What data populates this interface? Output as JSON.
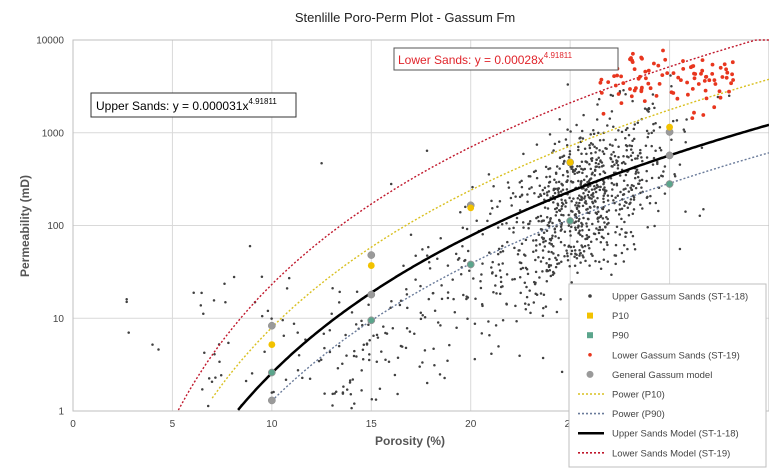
{
  "chart_data": {
    "type": "scatter",
    "title": "Stenlille Poro-Perm Plot - Gassum Fm",
    "xlabel": "Porosity (%)",
    "ylabel": "Permeability (mD)",
    "xlim": [
      0,
      35
    ],
    "ylim": [
      1,
      10000
    ],
    "y_scale": "log",
    "x_ticks": [
      "0",
      "5",
      "10",
      "15",
      "20",
      "25",
      "30",
      "35"
    ],
    "y_ticks": [
      "1",
      "10",
      "100",
      "1000",
      "10000"
    ],
    "grid": true,
    "legend_position": "bottom-right",
    "annotations": [
      {
        "label": "Upper Sands: y = 0.000031x",
        "exponent": "4.91811",
        "color": "#000000"
      },
      {
        "label": "Lower Sands: y = 0.00028x",
        "exponent": "4.91811",
        "color": "#e0242b"
      }
    ],
    "legend": [
      {
        "label": "Upper Gassum Sands (ST-1-18)",
        "kind": "dot",
        "color": "#404040"
      },
      {
        "label": "P10",
        "kind": "square",
        "color": "#f2c200"
      },
      {
        "label": "P90",
        "kind": "square",
        "color": "#5ba58c"
      },
      {
        "label": "Lower Gassum Sands (ST-19)",
        "kind": "dot",
        "color": "#e8361e"
      },
      {
        "label": "General Gassum model",
        "kind": "circle",
        "color": "#9a9a9a"
      },
      {
        "label": "Power (P10)",
        "kind": "dotted",
        "color": "#d9c020"
      },
      {
        "label": "Power (P90)",
        "kind": "dotted",
        "color": "#6a7b9a"
      },
      {
        "label": "Upper Sands Model (ST-1-18)",
        "kind": "solid",
        "color": "#000000"
      },
      {
        "label": "Lower Sands Model (ST-19)",
        "kind": "dotted",
        "color": "#c0182c"
      }
    ],
    "series": [
      {
        "name": "Upper Sands Model (ST-1-18)",
        "type": "power_curve",
        "a": 3.1e-05,
        "b": 4.91811,
        "x_range": [
          8.3,
          35
        ],
        "color": "#000000"
      },
      {
        "name": "Lower Sands Model (ST-19)",
        "type": "power_curve",
        "a": 0.00028,
        "b": 4.91811,
        "x_range": [
          5.2,
          35
        ],
        "color": "#c0182c"
      },
      {
        "name": "Power (P10)",
        "type": "power_curve",
        "a": 9.6e-05,
        "b": 4.91811,
        "x_range": [
          7.0,
          35
        ],
        "color": "#d9c020"
      },
      {
        "name": "Power (P90)",
        "type": "power_curve",
        "a": 1.55e-05,
        "b": 4.91811,
        "x_range": [
          10.0,
          35
        ],
        "color": "#6a7b9a"
      },
      {
        "name": "General Gassum model",
        "type": "points",
        "color": "#9a9a9a",
        "points": [
          [
            10,
            1.3
          ],
          [
            10,
            2.6
          ],
          [
            10,
            8.3
          ],
          [
            15,
            9.5
          ],
          [
            15,
            18
          ],
          [
            15,
            48
          ],
          [
            20,
            38
          ],
          [
            20,
            165
          ],
          [
            25,
            112
          ],
          [
            25,
            480
          ],
          [
            30,
            280
          ],
          [
            30,
            1020
          ],
          [
            30,
            570
          ]
        ]
      },
      {
        "name": "P10",
        "type": "points",
        "color": "#f2c200",
        "points": [
          [
            10,
            5.2
          ],
          [
            15,
            37
          ],
          [
            20,
            155
          ],
          [
            25,
            480
          ],
          [
            30,
            1150
          ]
        ]
      },
      {
        "name": "P90",
        "type": "points",
        "color": "#5ba58c",
        "points": [
          [
            10,
            2.6
          ],
          [
            15,
            9.5
          ],
          [
            20,
            38
          ],
          [
            25,
            112
          ],
          [
            30,
            280
          ]
        ]
      },
      {
        "name": "Lower Gassum Sands (ST-19)",
        "type": "scatter",
        "color": "#e8361e",
        "n": 95,
        "x_range": [
          26.5,
          33.2
        ],
        "y_log_range": [
          3.25,
          4.0
        ]
      },
      {
        "name": "Upper Gassum Sands (ST-1-18)",
        "type": "scatter",
        "color": "#404040",
        "n": 1050,
        "x_range": [
          2.6,
          33.5
        ],
        "center_x": 26,
        "center_y": 180
      }
    ]
  }
}
